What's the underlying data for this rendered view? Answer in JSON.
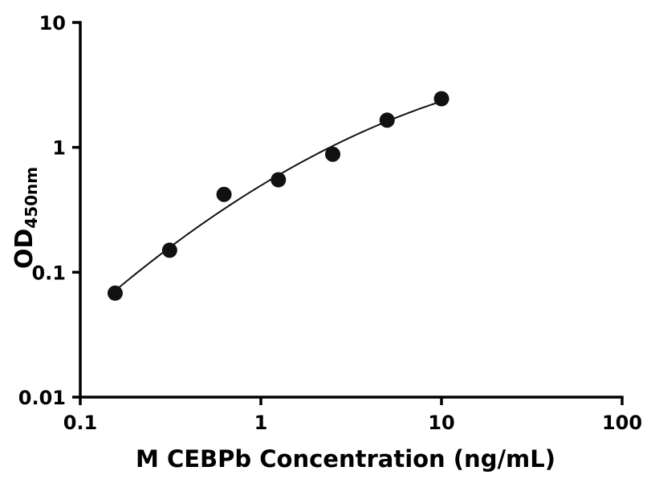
{
  "page": {
    "background": "#ffffff"
  },
  "chart_data": {
    "type": "scatter",
    "title": "",
    "xlabel": "M CEBPb Concentration (ng/mL)",
    "ylabel_main": "OD",
    "ylabel_sub": "450nm",
    "x_scale": "log",
    "y_scale": "log",
    "xlim": [
      0.1,
      100
    ],
    "ylim": [
      0.01,
      10
    ],
    "x_ticks": [
      0.1,
      1,
      10,
      100
    ],
    "x_tick_labels": [
      "0.1",
      "1",
      "10",
      "100"
    ],
    "y_ticks": [
      0.01,
      0.1,
      1,
      10
    ],
    "y_tick_labels": [
      "0.01",
      "0.1",
      "1",
      "10"
    ],
    "grid": false,
    "legend": "none",
    "points": {
      "x": [
        0.156,
        0.3125,
        0.625,
        1.25,
        2.5,
        5,
        10
      ],
      "y": [
        0.068,
        0.15,
        0.42,
        0.55,
        0.88,
        1.65,
        2.45
      ]
    },
    "fit_curve": {
      "type": "smooth-log-quadratic",
      "x_start": 0.145,
      "x_end": 10
    },
    "marker_color": "#111111",
    "line_color": "#111111",
    "axis_color": "#000000"
  }
}
